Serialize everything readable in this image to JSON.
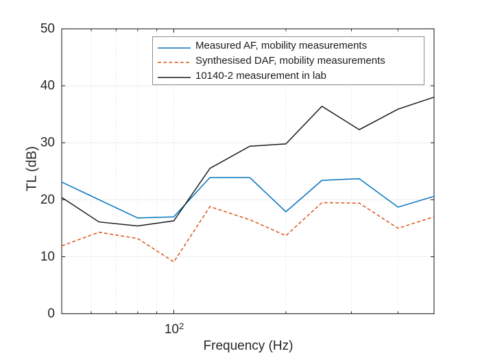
{
  "figure": {
    "background": "#ffffff",
    "axis_color": "#262626",
    "grid_color": "#ebebeb",
    "minor_grid_color": "#d9d9d9",
    "legend_border_color": "#8c8c8c"
  },
  "chart_data": {
    "type": "line",
    "title": "",
    "xlabel": "Frequency (Hz)",
    "ylabel": "TL (dB)",
    "x_scale": "log",
    "xlim": [
      50,
      500
    ],
    "ylim": [
      0,
      50
    ],
    "grid": true,
    "y_ticks": [
      0,
      10,
      20,
      30,
      40,
      50
    ],
    "x_major_ticks": [
      100
    ],
    "x_major_label": {
      "base": "10",
      "exp": "2"
    },
    "x_minor_ticks": [
      60,
      70,
      80,
      90,
      200,
      300,
      400
    ],
    "x": [
      50,
      63,
      80,
      100,
      125,
      160,
      200,
      250,
      315,
      400,
      500
    ],
    "series": [
      {
        "name": "Measured AF, mobility measurements",
        "color": "#0072BD",
        "style": "solid",
        "values": [
          23.1,
          20.0,
          16.8,
          17.0,
          23.9,
          23.9,
          17.9,
          23.4,
          23.7,
          18.7,
          20.6
        ]
      },
      {
        "name": "Synthesised DAF, mobility measurements",
        "color": "#D95319",
        "style": "dashed",
        "values": [
          11.9,
          14.3,
          13.2,
          9.1,
          18.8,
          16.5,
          13.7,
          19.5,
          19.4,
          15.0,
          17.0
        ]
      },
      {
        "name": "10140-2 measurement in lab",
        "color": "#1a1a1a",
        "style": "solid",
        "values": [
          20.4,
          16.1,
          15.4,
          16.3,
          25.5,
          29.4,
          29.8,
          36.4,
          32.3,
          35.9,
          38.0
        ]
      }
    ],
    "legend_position": "top-right-inside"
  }
}
